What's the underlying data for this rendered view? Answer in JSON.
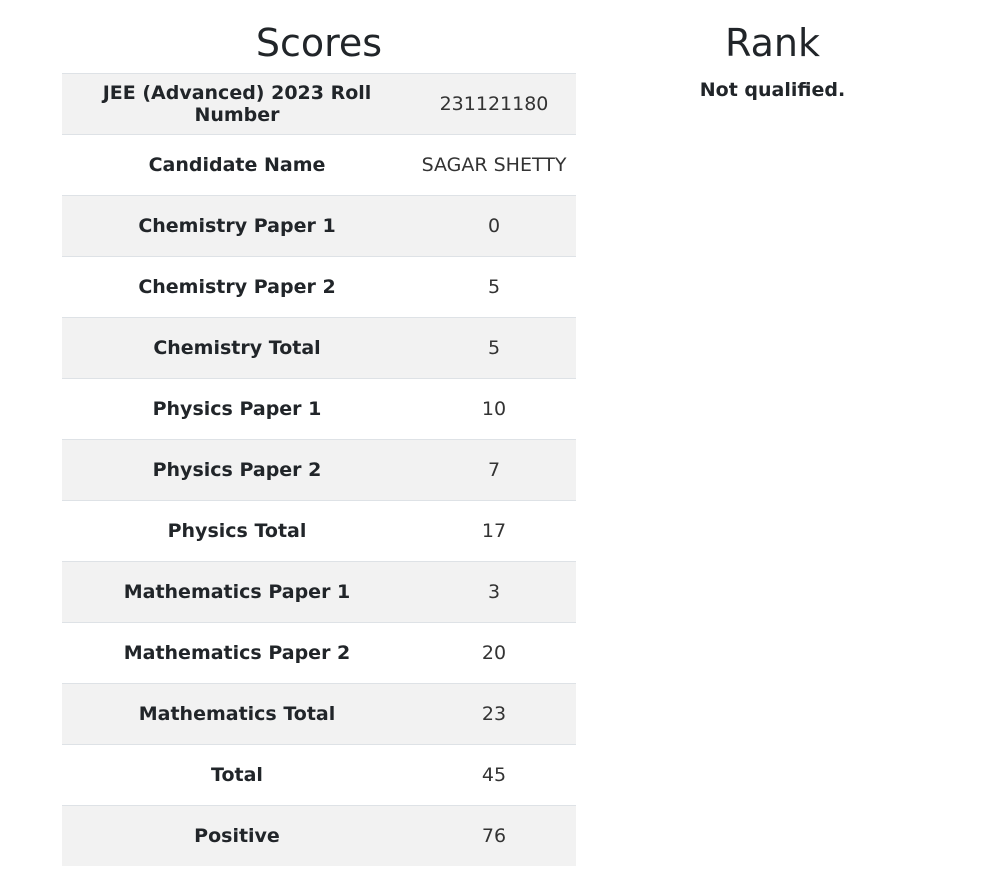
{
  "scores": {
    "title": "Scores",
    "rows": [
      {
        "label": "JEE (Advanced) 2023 Roll Number",
        "value": "231121180"
      },
      {
        "label": "Candidate Name",
        "value": "SAGAR SHETTY"
      },
      {
        "label": "Chemistry Paper 1",
        "value": "0"
      },
      {
        "label": "Chemistry Paper 2",
        "value": "5"
      },
      {
        "label": "Chemistry Total",
        "value": "5"
      },
      {
        "label": "Physics Paper 1",
        "value": "10"
      },
      {
        "label": "Physics Paper 2",
        "value": "7"
      },
      {
        "label": "Physics Total",
        "value": "17"
      },
      {
        "label": "Mathematics Paper 1",
        "value": "3"
      },
      {
        "label": "Mathematics Paper 2",
        "value": "20"
      },
      {
        "label": "Mathematics Total",
        "value": "23"
      },
      {
        "label": "Total",
        "value": "45"
      },
      {
        "label": "Positive",
        "value": "76"
      }
    ]
  },
  "rank": {
    "title": "Rank",
    "status": "Not qualified."
  }
}
